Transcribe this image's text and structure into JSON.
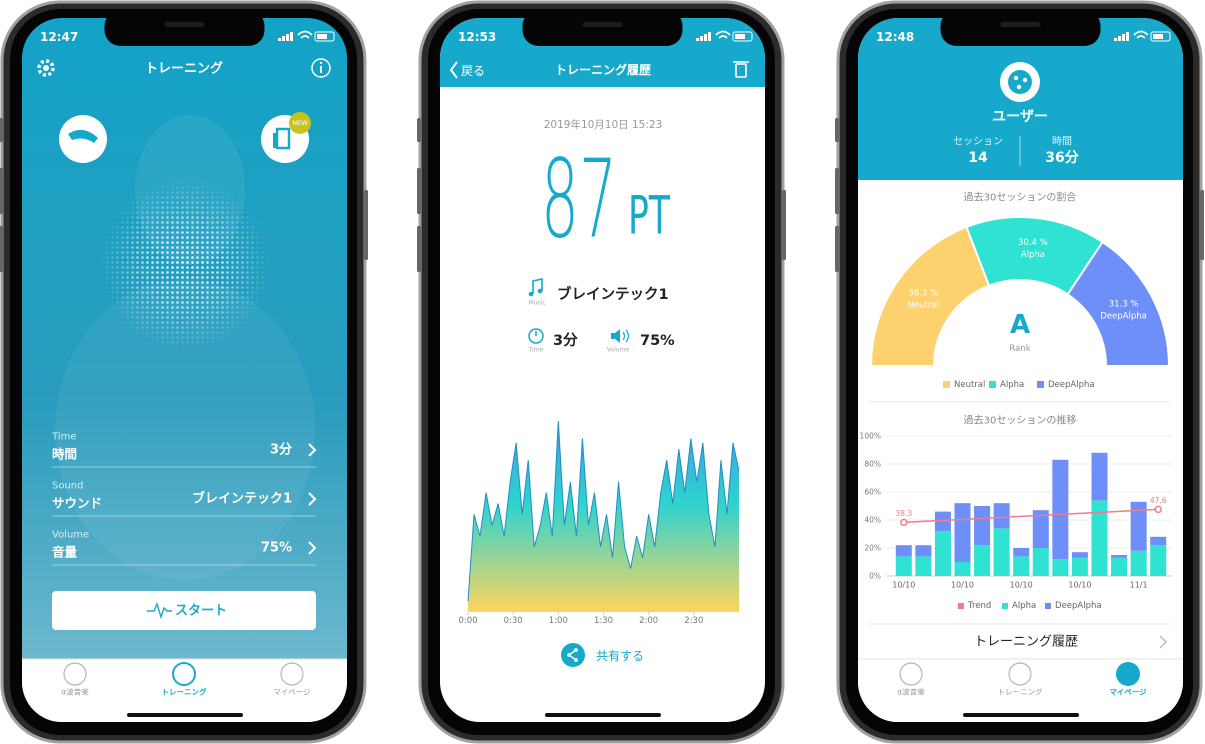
{
  "screens": [
    {
      "status_time": "12:47",
      "title": "トレーニング",
      "badge": "NEW",
      "settings": [
        {
          "label_en": "Time",
          "label": "時間",
          "value": "3分"
        },
        {
          "label_en": "Sound",
          "label": "サウンド",
          "value": "ブレインテック1"
        },
        {
          "label_en": "Volume",
          "label": "音量",
          "value": "75%"
        }
      ],
      "button": "スタート",
      "tabs": [
        "α波音楽",
        "トレーニング",
        "マイページ"
      ],
      "active_tab": 1
    },
    {
      "status_time": "12:53",
      "back": "戻る",
      "title": "トレーニング履歴",
      "date": "2019年10月10日 15:23",
      "score": 87,
      "score_unit": "PT",
      "music_label": "Music",
      "music": "ブレインテック1",
      "time_label": "Time",
      "time": "3分",
      "volume_label": "Volume",
      "volume": "75%",
      "share": "共有する"
    },
    {
      "status_time": "12:48",
      "title": "ユーザー",
      "sessions_label": "セッション",
      "sessions": 14,
      "time_label": "時間",
      "time": "36分",
      "history_link": "トレーニング履歴",
      "tabs": [
        "α波音楽",
        "トレーニング",
        "マイページ"
      ],
      "active_tab": 2
    }
  ],
  "chart_data": [
    {
      "type": "area",
      "x": [
        0,
        4,
        8,
        12,
        16,
        20,
        24,
        28,
        32,
        36,
        40,
        44,
        48,
        52,
        56,
        60,
        64,
        68,
        72,
        76,
        80,
        84,
        88,
        92,
        96,
        100,
        104,
        108,
        112,
        116,
        120,
        124,
        128,
        132,
        136,
        140,
        144,
        148,
        152,
        156,
        160,
        164,
        168,
        172,
        176,
        180
      ],
      "values": [
        5,
        45,
        35,
        55,
        40,
        50,
        35,
        60,
        78,
        45,
        70,
        30,
        40,
        55,
        35,
        88,
        40,
        60,
        35,
        80,
        40,
        55,
        30,
        45,
        25,
        60,
        30,
        20,
        35,
        25,
        45,
        30,
        55,
        70,
        50,
        75,
        55,
        80,
        60,
        78,
        45,
        30,
        70,
        45,
        78,
        65
      ],
      "xlim": [
        0,
        180
      ],
      "xticks": [
        {
          "value": 0,
          "label": "0:00"
        },
        {
          "value": 30,
          "label": "0:30"
        },
        {
          "value": 60,
          "label": "1:00"
        },
        {
          "value": 90,
          "label": "1:30"
        },
        {
          "value": 120,
          "label": "2:00"
        },
        {
          "value": 150,
          "label": "2:30"
        }
      ],
      "ylim": [
        0,
        100
      ],
      "colors": [
        "#4a86e8",
        "#2ed3cf",
        "#ffd45e"
      ],
      "line_color": "#1e8fc4"
    },
    {
      "type": "pie",
      "title": "過去30セッションの割合",
      "categories": [
        "Neutral",
        "Alpha",
        "DeepAlpha"
      ],
      "values": [
        38.3,
        30.4,
        31.3
      ],
      "value_labels": [
        "38.3 %",
        "30.4 %",
        "31.3 %"
      ],
      "colors": [
        "#fdd26e",
        "#2fe2d2",
        "#6e8ff7"
      ],
      "center_label": "A",
      "center_sublabel": "Rank",
      "legend": "bottom"
    },
    {
      "type": "bar",
      "stacked": true,
      "title": "過去30セッションの推移",
      "categories": [
        "10/10",
        null,
        null,
        "10/10",
        null,
        null,
        "10/10",
        null,
        null,
        "10/10",
        null,
        null,
        "11/1",
        null
      ],
      "series": [
        {
          "name": "Trend",
          "type": "line",
          "color": "#f27b8c",
          "values": [
            38.3,
            39.0,
            39.7,
            40.4,
            41.2,
            41.9,
            42.6,
            43.3,
            44.0,
            44.7,
            45.4,
            46.2,
            46.9,
            47.6
          ]
        },
        {
          "name": "Alpha",
          "color": "#2fe2d2",
          "values": [
            14,
            14,
            32,
            10,
            22,
            34,
            14,
            20,
            12,
            13,
            54,
            13,
            18,
            22
          ]
        },
        {
          "name": "DeepAlpha",
          "color": "#6e8ff7",
          "values": [
            8,
            8,
            14,
            42,
            28,
            18,
            6,
            27,
            71,
            4,
            34,
            2,
            35,
            6
          ]
        }
      ],
      "ylim": [
        0,
        100
      ],
      "yticks": [
        {
          "value": 0,
          "label": "0%"
        },
        {
          "value": 20,
          "label": "20%"
        },
        {
          "value": 40,
          "label": "40%"
        },
        {
          "value": 60,
          "label": "60%"
        },
        {
          "value": 80,
          "label": "80%"
        },
        {
          "value": 100,
          "label": "100%"
        }
      ],
      "grid": true,
      "legend": "bottom"
    }
  ]
}
